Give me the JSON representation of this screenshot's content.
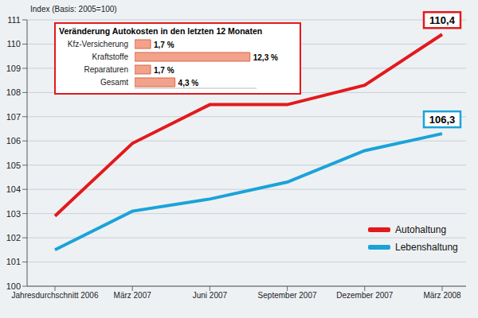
{
  "chart_data": [
    {
      "type": "line",
      "ylabel": "Index (Basis: 2005=100)",
      "categories": [
        "Jahresdurchschnitt 2006",
        "März 2007",
        "Juni 2007",
        "September 2007",
        "Dezember 2007",
        "März 2008"
      ],
      "series": [
        {
          "name": "Autohaltung",
          "color": "#e3191c",
          "values": [
            102.9,
            105.9,
            107.5,
            107.5,
            108.3,
            110.4
          ],
          "value_labels": [
            null,
            null,
            null,
            null,
            null,
            "110,4"
          ]
        },
        {
          "name": "Lebenshaltung",
          "color": "#1aa3d9",
          "values": [
            101.5,
            103.1,
            103.6,
            104.3,
            105.6,
            106.3
          ],
          "value_labels": [
            null,
            null,
            null,
            null,
            null,
            "106,3"
          ]
        }
      ],
      "ylim": [
        100,
        111
      ],
      "yticks": [
        100,
        101,
        102,
        103,
        104,
        105,
        106,
        107,
        108,
        109,
        110,
        111
      ],
      "grid": true,
      "legend": "right"
    },
    {
      "type": "bar",
      "orientation": "horizontal",
      "title": "Veränderung Autokosten in den letzten 12 Monaten",
      "categories": [
        "Kfz-Versicherung",
        "Kraftstoffe",
        "Reparaturen",
        "Gesamt"
      ],
      "values": [
        1.7,
        12.3,
        1.7,
        4.3
      ],
      "value_labels": [
        "1,7 %",
        "12,3 %",
        "1,7 %",
        "4,3 %"
      ],
      "color": "#f2a28a",
      "xlim": [
        0,
        13
      ],
      "tick_labels": "y"
    }
  ]
}
